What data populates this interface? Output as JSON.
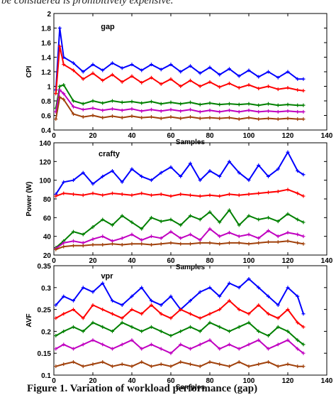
{
  "caption_top": "be considered is prohibitively expensive.",
  "caption_bottom": "Figure 1. Variation of workload performance (gap)",
  "series_colors": [
    "#0000ff",
    "#ff0000",
    "#008000",
    "#c000c0",
    "#a0400a"
  ],
  "chart_data": [
    {
      "type": "line",
      "title": "gap",
      "xlabel": "Samples",
      "ylabel": "CPI",
      "xlim": [
        0,
        140
      ],
      "ylim": [
        0.4,
        2
      ],
      "xticks": [
        "0",
        "20",
        "40",
        "60",
        "80",
        "100",
        "120",
        "140"
      ],
      "yticks": [
        "0.4",
        "0.6",
        "0.8",
        "1",
        "1.2",
        "1.4",
        "1.6",
        "1.8",
        "2"
      ],
      "x": [
        1,
        3,
        5,
        10,
        15,
        20,
        25,
        30,
        35,
        40,
        45,
        50,
        55,
        60,
        65,
        70,
        75,
        80,
        85,
        90,
        95,
        100,
        105,
        110,
        115,
        120,
        125,
        128
      ],
      "series": [
        {
          "values": [
            0.95,
            1.8,
            1.4,
            1.32,
            1.2,
            1.3,
            1.22,
            1.32,
            1.25,
            1.3,
            1.22,
            1.3,
            1.23,
            1.3,
            1.2,
            1.28,
            1.18,
            1.26,
            1.16,
            1.24,
            1.14,
            1.22,
            1.13,
            1.2,
            1.12,
            1.2,
            1.1,
            1.1
          ]
        },
        {
          "values": [
            0.9,
            1.55,
            1.3,
            1.22,
            1.1,
            1.18,
            1.08,
            1.16,
            1.06,
            1.14,
            1.05,
            1.12,
            1.03,
            1.1,
            1.0,
            1.08,
            1.0,
            1.06,
            0.99,
            1.04,
            0.98,
            1.02,
            0.97,
            1.0,
            0.96,
            0.98,
            0.95,
            0.94
          ]
        },
        {
          "values": [
            0.7,
            1.0,
            1.02,
            0.8,
            0.76,
            0.8,
            0.77,
            0.8,
            0.78,
            0.79,
            0.77,
            0.79,
            0.76,
            0.78,
            0.76,
            0.78,
            0.75,
            0.77,
            0.75,
            0.76,
            0.75,
            0.76,
            0.74,
            0.76,
            0.74,
            0.75,
            0.74,
            0.74
          ]
        },
        {
          "values": [
            0.65,
            0.95,
            0.9,
            0.72,
            0.68,
            0.7,
            0.67,
            0.69,
            0.67,
            0.69,
            0.66,
            0.68,
            0.66,
            0.68,
            0.66,
            0.68,
            0.65,
            0.67,
            0.65,
            0.67,
            0.65,
            0.67,
            0.65,
            0.66,
            0.65,
            0.66,
            0.65,
            0.65
          ]
        },
        {
          "values": [
            0.55,
            0.85,
            0.82,
            0.62,
            0.58,
            0.6,
            0.57,
            0.59,
            0.57,
            0.59,
            0.57,
            0.58,
            0.56,
            0.58,
            0.56,
            0.58,
            0.56,
            0.57,
            0.56,
            0.57,
            0.55,
            0.57,
            0.55,
            0.56,
            0.55,
            0.56,
            0.55,
            0.55
          ]
        }
      ]
    },
    {
      "type": "line",
      "title": "crafty",
      "xlabel": "Samples",
      "ylabel": "Power (W)",
      "xlim": [
        0,
        140
      ],
      "ylim": [
        20,
        140
      ],
      "xticks": [
        "0",
        "20",
        "40",
        "60",
        "80",
        "100",
        "120",
        "140"
      ],
      "yticks": [
        "20",
        "40",
        "60",
        "80",
        "100",
        "120",
        "140"
      ],
      "x": [
        1,
        5,
        10,
        15,
        20,
        25,
        30,
        35,
        40,
        45,
        50,
        55,
        60,
        65,
        70,
        75,
        80,
        85,
        90,
        95,
        100,
        105,
        110,
        115,
        120,
        125,
        128
      ],
      "series": [
        {
          "values": [
            85,
            98,
            100,
            108,
            96,
            104,
            110,
            98,
            112,
            104,
            100,
            108,
            114,
            104,
            118,
            100,
            110,
            104,
            120,
            108,
            100,
            116,
            104,
            112,
            130,
            110,
            106
          ]
        },
        {
          "values": [
            83,
            86,
            85,
            84,
            86,
            84,
            86,
            85,
            84,
            86,
            84,
            85,
            83,
            85,
            84,
            83,
            84,
            83,
            85,
            84,
            85,
            86,
            87,
            88,
            90,
            86,
            83
          ]
        },
        {
          "values": [
            28,
            35,
            45,
            42,
            50,
            58,
            52,
            62,
            55,
            48,
            60,
            56,
            58,
            52,
            62,
            58,
            66,
            55,
            68,
            52,
            62,
            58,
            60,
            56,
            64,
            58,
            55
          ]
        },
        {
          "values": [
            27,
            33,
            35,
            33,
            37,
            40,
            35,
            38,
            42,
            36,
            40,
            38,
            45,
            38,
            42,
            36,
            48,
            40,
            44,
            40,
            42,
            38,
            46,
            40,
            44,
            42,
            40
          ]
        },
        {
          "values": [
            26,
            29,
            30,
            30,
            31,
            31,
            32,
            31,
            32,
            32,
            31,
            32,
            33,
            32,
            32,
            33,
            33,
            32,
            33,
            33,
            32,
            33,
            34,
            34,
            35,
            33,
            32
          ]
        }
      ]
    },
    {
      "type": "line",
      "title": "vpr",
      "xlabel": "Samples",
      "ylabel": "AVF",
      "xlim": [
        0,
        140
      ],
      "ylim": [
        0.1,
        0.35
      ],
      "xticks": [
        "0",
        "20",
        "40",
        "60",
        "80",
        "100",
        "120",
        "140"
      ],
      "yticks": [
        "0.1",
        "0.15",
        "0.2",
        "0.25",
        "0.3",
        "0.35"
      ],
      "x": [
        1,
        5,
        10,
        15,
        20,
        25,
        30,
        35,
        40,
        45,
        50,
        55,
        60,
        65,
        70,
        75,
        80,
        85,
        90,
        95,
        100,
        105,
        110,
        115,
        120,
        125,
        128
      ],
      "series": [
        {
          "values": [
            0.26,
            0.28,
            0.27,
            0.3,
            0.29,
            0.31,
            0.27,
            0.26,
            0.28,
            0.3,
            0.27,
            0.26,
            0.28,
            0.25,
            0.27,
            0.29,
            0.3,
            0.28,
            0.31,
            0.3,
            0.32,
            0.3,
            0.28,
            0.26,
            0.3,
            0.28,
            0.24
          ]
        },
        {
          "values": [
            0.23,
            0.24,
            0.25,
            0.23,
            0.26,
            0.25,
            0.24,
            0.23,
            0.25,
            0.24,
            0.26,
            0.24,
            0.23,
            0.25,
            0.24,
            0.23,
            0.24,
            0.25,
            0.27,
            0.25,
            0.24,
            0.26,
            0.24,
            0.23,
            0.25,
            0.22,
            0.21
          ]
        },
        {
          "values": [
            0.19,
            0.2,
            0.21,
            0.2,
            0.22,
            0.21,
            0.2,
            0.22,
            0.21,
            0.2,
            0.21,
            0.2,
            0.19,
            0.2,
            0.21,
            0.2,
            0.22,
            0.21,
            0.2,
            0.21,
            0.22,
            0.2,
            0.19,
            0.21,
            0.2,
            0.18,
            0.17
          ]
        },
        {
          "values": [
            0.16,
            0.17,
            0.16,
            0.17,
            0.18,
            0.17,
            0.16,
            0.17,
            0.18,
            0.16,
            0.17,
            0.16,
            0.15,
            0.17,
            0.16,
            0.17,
            0.18,
            0.16,
            0.17,
            0.16,
            0.17,
            0.18,
            0.16,
            0.17,
            0.18,
            0.16,
            0.15
          ]
        },
        {
          "values": [
            0.12,
            0.125,
            0.13,
            0.12,
            0.125,
            0.13,
            0.12,
            0.125,
            0.12,
            0.13,
            0.12,
            0.125,
            0.12,
            0.13,
            0.125,
            0.12,
            0.13,
            0.125,
            0.12,
            0.13,
            0.12,
            0.125,
            0.13,
            0.12,
            0.125,
            0.12,
            0.12
          ]
        }
      ]
    }
  ]
}
